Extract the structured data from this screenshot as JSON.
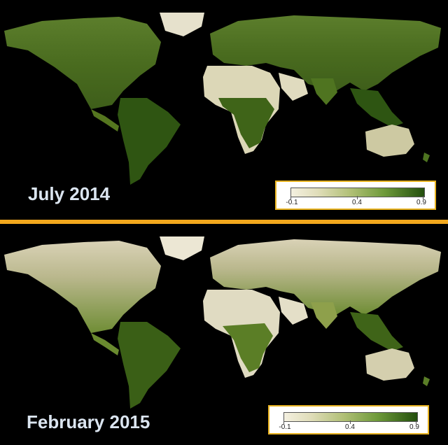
{
  "panels": [
    {
      "id": "july-2014",
      "label": "July 2014"
    },
    {
      "id": "february-2015",
      "label": "February 2015"
    }
  ],
  "legend": {
    "ticks": [
      "-0.1",
      "0.4",
      "0.9"
    ],
    "colors": {
      "low": "#f4f0e0",
      "mid": "#b0bf75",
      "high": "#234f0d"
    }
  },
  "colors": {
    "divider": "#f2a81d",
    "legend_border": "#e8b321",
    "ocean": "#000000",
    "label_text": "#dbe5f0"
  }
}
